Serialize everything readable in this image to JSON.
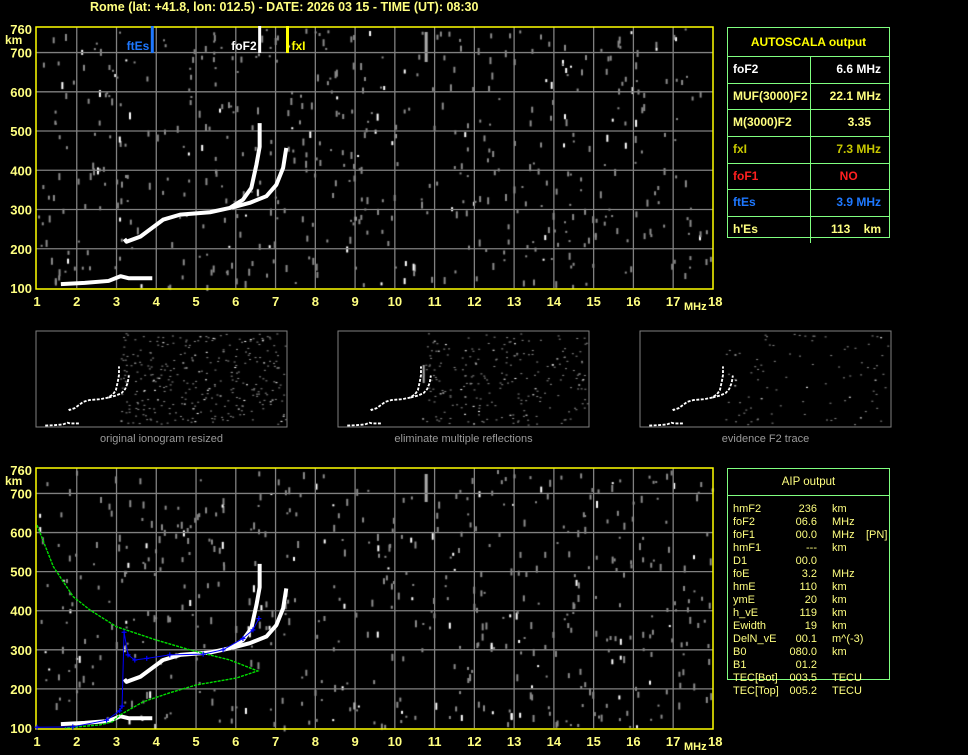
{
  "title": "Rome (lat: +41.8, lon: 012.5) - DATE: 2026 03 15 - TIME (UT): 08:30",
  "colors": {
    "axis": "#ffff00",
    "grid": "#808080",
    "panel_border": "#80ff80",
    "trace": "#ffffff",
    "profile": "#00e000",
    "reconstructed": "#0000ff"
  },
  "plot_axes": {
    "y_unit": "km",
    "x_unit": "MHz",
    "y_ticks": [
      "760",
      "700",
      "600",
      "500",
      "400",
      "300",
      "200",
      "100"
    ],
    "x_ticks": [
      "1",
      "2",
      "3",
      "4",
      "5",
      "6",
      "7",
      "8",
      "9",
      "10",
      "11",
      "12",
      "13",
      "14",
      "15",
      "16",
      "17",
      "18"
    ]
  },
  "markers": [
    {
      "label": "ftEs",
      "freq": 3.9,
      "color": "#1e78ff"
    },
    {
      "label": "foF2",
      "freq": 6.6,
      "color": "#ffffff"
    },
    {
      "label": "fxI",
      "freq": 7.3,
      "color": "#ffff00"
    }
  ],
  "autoscala": {
    "title": "AUTOSCALA output",
    "rows": [
      {
        "label": "foF2",
        "value": "6.6 MHz",
        "color": "#ffffff"
      },
      {
        "label": "MUF(3000)F2",
        "value": "22.1 MHz",
        "color": "#ffff80"
      },
      {
        "label": "M(3000)F2",
        "value": "3.35   ",
        "color": "#ffff80"
      },
      {
        "label": "fxI",
        "value": "7.3 MHz",
        "color": "#c8c800"
      },
      {
        "label": "foF1",
        "value": "NO       ",
        "color": "#ff2020"
      },
      {
        "label": "ftEs",
        "value": "3.9 MHz",
        "color": "#1e78ff"
      },
      {
        "label": "h'Es",
        "value": "113    km",
        "color": "#ffff80"
      }
    ]
  },
  "thumbnails": [
    {
      "caption": "original ionogram resized"
    },
    {
      "caption": "eliminate multiple reflections"
    },
    {
      "caption": "evidence F2 trace"
    }
  ],
  "aip": {
    "title": "AIP output",
    "rows": [
      {
        "param": "hmF2",
        "value": "236",
        "unit": "km",
        "note": ""
      },
      {
        "param": "foF2",
        "value": "06.6",
        "unit": "MHz",
        "note": ""
      },
      {
        "param": "foF1",
        "value": "00.0",
        "unit": "MHz",
        "note": "[PN]"
      },
      {
        "param": "hmF1",
        "value": "---",
        "unit": "km",
        "note": ""
      },
      {
        "param": "D1",
        "value": "00.0",
        "unit": "",
        "note": ""
      },
      {
        "param": "foE",
        "value": "3.2",
        "unit": "MHz",
        "note": ""
      },
      {
        "param": "hmE",
        "value": "110",
        "unit": "km",
        "note": ""
      },
      {
        "param": "ymE",
        "value": "20",
        "unit": "km",
        "note": ""
      },
      {
        "param": "h_vE",
        "value": "119",
        "unit": "km",
        "note": ""
      },
      {
        "param": "Ewidth",
        "value": "19",
        "unit": "km",
        "note": ""
      },
      {
        "param": "DelN_vE",
        "value": "00.1",
        "unit": "m^(-3)",
        "note": ""
      },
      {
        "param": "B0",
        "value": "080.0",
        "unit": "km",
        "note": ""
      },
      {
        "param": "B1",
        "value": "01.2",
        "unit": "",
        "note": ""
      },
      {
        "param": "TEC[Bot]",
        "value": "003.5",
        "unit": "TECU",
        "note": ""
      },
      {
        "param": "TEC[Top]",
        "value": "005.2",
        "unit": "TECU",
        "note": ""
      }
    ]
  },
  "chart_data": [
    {
      "type": "scatter",
      "xlabel": "MHz",
      "ylabel": "km",
      "xlim": [
        1,
        18
      ],
      "ylim": [
        100,
        760
      ],
      "grid": true,
      "series": [
        {
          "trace": "o",
          "points": [
            [
              3.2,
              225
            ],
            [
              3.25,
              218
            ],
            [
              3.6,
              231
            ],
            [
              4.17,
              274
            ],
            [
              4.6,
              287
            ],
            [
              5.35,
              293
            ],
            [
              5.85,
              304
            ],
            [
              6.18,
              325
            ],
            [
              6.39,
              355
            ],
            [
              6.52,
              415
            ],
            [
              6.6,
              460
            ],
            [
              6.6,
              520
            ]
          ]
        },
        {
          "trace": "x",
          "points": [
            [
              5.9,
              305
            ],
            [
              6.35,
              317
            ],
            [
              6.77,
              334
            ],
            [
              7.02,
              363
            ],
            [
              7.19,
              406
            ],
            [
              7.27,
              457
            ]
          ]
        },
        {
          "trace": "Es",
          "points": [
            [
              1.6,
              110
            ],
            [
              2.2,
              113
            ],
            [
              2.8,
              118
            ],
            [
              3.1,
              130
            ],
            [
              3.3,
              125
            ],
            [
              3.9,
              125
            ]
          ]
        }
      ]
    },
    {
      "type": "line",
      "xlabel": "MHz",
      "ylabel": "km",
      "xlim": [
        1,
        18
      ],
      "ylim": [
        100,
        760
      ],
      "grid": true,
      "series": [
        {
          "trace": "o",
          "points": [
            [
              3.2,
              225
            ],
            [
              3.25,
              218
            ],
            [
              3.6,
              231
            ],
            [
              4.17,
              274
            ],
            [
              4.6,
              287
            ],
            [
              5.35,
              293
            ],
            [
              5.85,
              304
            ],
            [
              6.18,
              325
            ],
            [
              6.39,
              355
            ],
            [
              6.52,
              415
            ],
            [
              6.6,
              460
            ],
            [
              6.6,
              520
            ]
          ]
        },
        {
          "trace": "x",
          "points": [
            [
              5.9,
              305
            ],
            [
              6.35,
              317
            ],
            [
              6.77,
              334
            ],
            [
              7.02,
              363
            ],
            [
              7.19,
              406
            ],
            [
              7.27,
              457
            ]
          ]
        },
        {
          "trace": "Es",
          "points": [
            [
              1.6,
              110
            ],
            [
              2.2,
              113
            ],
            [
              2.8,
              118
            ],
            [
              3.1,
              130
            ],
            [
              3.3,
              125
            ],
            [
              3.9,
              125
            ]
          ]
        },
        {
          "trace": "profile",
          "points": [
            [
              1.0,
              619
            ],
            [
              1.41,
              513
            ],
            [
              1.91,
              436
            ],
            [
              2.33,
              402
            ],
            [
              3.0,
              359
            ],
            [
              4.0,
              325
            ],
            [
              4.84,
              300
            ],
            [
              5.85,
              274
            ],
            [
              6.55,
              246
            ],
            [
              6.02,
              228
            ],
            [
              5.0,
              210
            ],
            [
              4.34,
              190
            ],
            [
              3.67,
              167
            ],
            [
              3.08,
              133
            ],
            [
              2.9,
              116
            ],
            [
              2.58,
              108
            ],
            [
              1.7,
              100
            ]
          ]
        },
        {
          "trace": "reconstructed",
          "points": [
            [
              1.0,
              102
            ],
            [
              1.9,
              103
            ],
            [
              2.75,
              120
            ],
            [
              3.08,
              144
            ],
            [
              3.14,
              156
            ],
            [
              3.19,
              345
            ],
            [
              3.29,
              287
            ],
            [
              3.46,
              274
            ],
            [
              3.76,
              278
            ],
            [
              4.34,
              287
            ],
            [
              5.18,
              289
            ],
            [
              5.68,
              300
            ],
            [
              6.18,
              329
            ],
            [
              6.43,
              351
            ],
            [
              6.58,
              380
            ]
          ]
        }
      ]
    }
  ]
}
